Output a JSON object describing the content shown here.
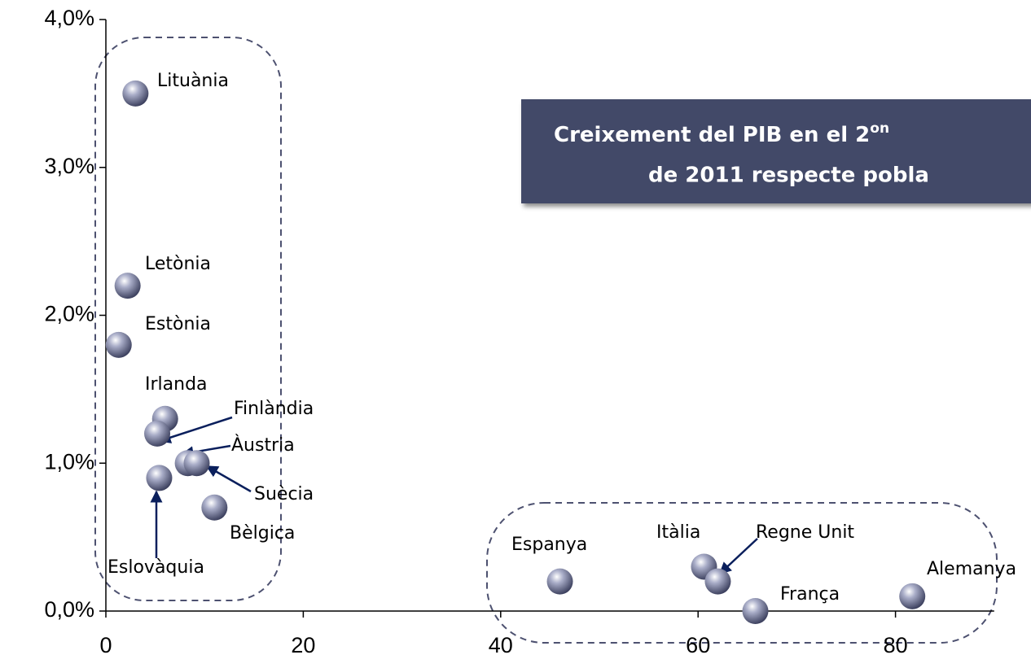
{
  "chart_data": {
    "type": "scatter",
    "title_line1": "Creixement del PIB en el 2",
    "title_sup": "on",
    "title_line2": "de 2011 respecte pobla",
    "series": [
      {
        "name": null,
        "color": "#8e93b0",
        "labels": [
          "Lituània",
          "Letònia",
          "Estònia",
          "Irlanda",
          "Finlàndia",
          "Àustria",
          "Suècia",
          "Eslovàquia",
          "Bèlgica",
          "Espanya",
          "Itàlia",
          "Regne Unit",
          "França",
          "Alemanya"
        ],
        "x": [
          3.0,
          2.2,
          1.3,
          6.0,
          5.2,
          8.3,
          9.2,
          5.4,
          11.0,
          46.0,
          60.6,
          62.0,
          65.8,
          81.7
        ],
        "values": [
          3.5,
          2.2,
          1.8,
          1.3,
          1.2,
          1.0,
          1.0,
          0.9,
          0.7,
          0.2,
          0.3,
          0.2,
          0.0,
          0.1
        ]
      }
    ],
    "xlim": [
      0,
      90
    ],
    "xticks": [
      0,
      20,
      40,
      60,
      80
    ],
    "ylim": [
      0,
      4
    ],
    "yticks": [
      {
        "value": 0,
        "label": "0,0%"
      },
      {
        "value": 1,
        "label": "1,0%"
      },
      {
        "value": 2,
        "label": "2,0%"
      },
      {
        "value": 3,
        "label": "3,0%"
      },
      {
        "value": 4,
        "label": "4,0%"
      }
    ]
  }
}
